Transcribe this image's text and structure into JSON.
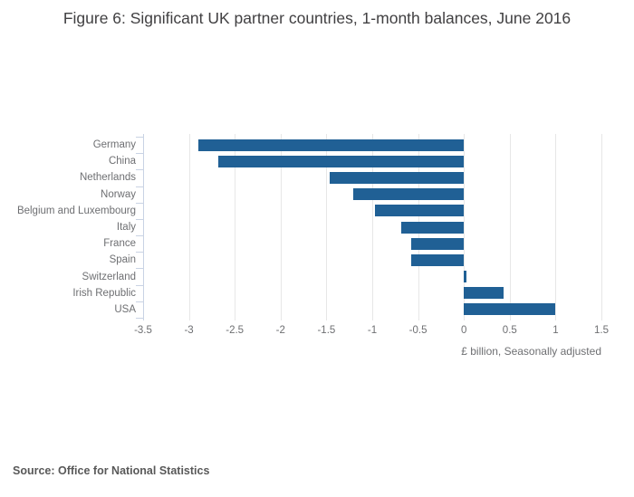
{
  "source": {
    "label": "Source: Office for National Statistics"
  },
  "chart_data": {
    "type": "bar",
    "orientation": "horizontal",
    "title": "Figure 6: Significant UK partner countries, 1-month balances, June 2016",
    "categories": [
      "Germany",
      "China",
      "Netherlands",
      "Norway",
      "Belgium and Luxembourg",
      "Italy",
      "France",
      "Spain",
      "Switzerland",
      "Irish Republic",
      "USA"
    ],
    "values": [
      -2.9,
      -2.68,
      -1.46,
      -1.21,
      -0.97,
      -0.68,
      -0.58,
      -0.58,
      0.03,
      0.43,
      1.0
    ],
    "xlabel": "£ billion, Seasonally adjusted",
    "ylabel": "",
    "xlim": [
      -3.5,
      1.5
    ],
    "xticks": [
      -3.5,
      -3,
      -2.5,
      -2,
      -1.5,
      -1,
      -0.5,
      0,
      0.5,
      1,
      1.5
    ],
    "grid": true,
    "legend": "none",
    "colors": {
      "bar": "#206095",
      "gridline": "#e7e7e7",
      "axis": "#c9d3e4",
      "tick_text": "#6e6f72",
      "title_text": "#414042",
      "source_text": "#595959"
    }
  }
}
